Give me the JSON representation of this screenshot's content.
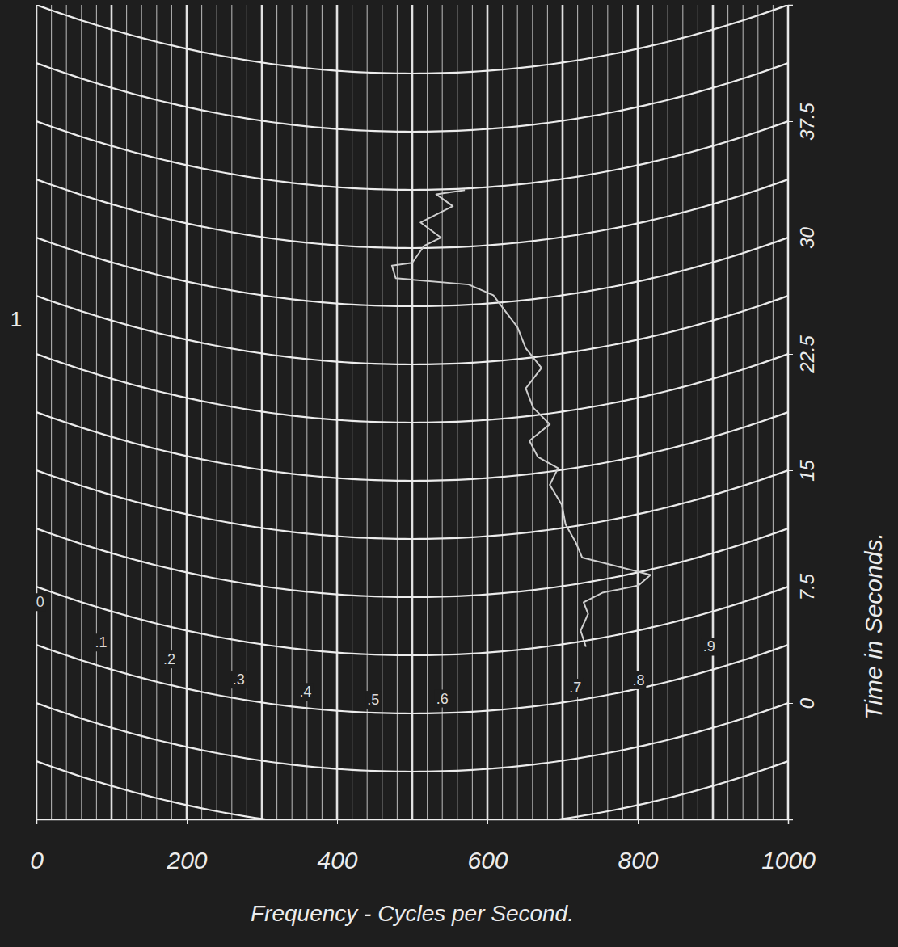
{
  "chart_data": {
    "type": "line",
    "x_label": "Frequency - Cycles per Second.",
    "y_label": "Time in Seconds.",
    "x": [
      731,
      724,
      734,
      728,
      753,
      801,
      817,
      769,
      726,
      717,
      704,
      699,
      683,
      694,
      667,
      656,
      683,
      661,
      651,
      672,
      651,
      640,
      624,
      608,
      575,
      478,
      473,
      500,
      516,
      538,
      511,
      554,
      532,
      570
    ],
    "series": [
      {
        "color": "#cfcfcf",
        "line_style": "solid",
        "values": [
          7.1,
          8.2,
          9.2,
          10.0,
          10.4,
          10.4,
          10.9,
          12.0,
          12.9,
          14.0,
          15.2,
          16.5,
          17.9,
          18.9,
          19.8,
          20.9,
          21.8,
          23.0,
          24.3,
          25.5,
          26.9,
          28.3,
          29.4,
          30.5,
          31.3,
          31.8,
          32.6,
          32.8,
          33.9,
          34.4,
          35.4,
          36.4,
          37.2,
          37.4
        ]
      }
    ],
    "xlim": [
      0,
      1000
    ],
    "xticks": [
      0,
      200,
      400,
      600,
      800,
      1000
    ],
    "ylim": [
      -7.5,
      45
    ],
    "yticks": [
      0,
      7.5,
      15,
      22.5,
      30,
      37.5
    ],
    "grid": true,
    "x_grid": [
      0,
      20,
      40,
      60,
      80,
      100,
      120,
      140,
      160,
      180,
      200,
      220,
      240,
      260,
      280,
      300,
      320,
      340,
      360,
      380,
      400,
      420,
      440,
      460,
      480,
      500,
      520,
      540,
      560,
      580,
      600,
      620,
      640,
      660,
      680,
      700,
      720,
      740,
      760,
      780,
      800,
      820,
      840,
      860,
      880,
      900,
      920,
      940,
      960,
      980,
      1000
    ],
    "y_grid": [
      -7.5,
      -3.75,
      0,
      3.75,
      7.5,
      11.25,
      15,
      18.75,
      22.5,
      26.25,
      30,
      33.75,
      37.5,
      41.25,
      45
    ],
    "annotations": [
      {
        "text": "0",
        "x": 5,
        "y": 6.6
      },
      {
        "text": ".1",
        "x": 86,
        "y": 5.3
      },
      {
        "text": ".2",
        "x": 177,
        "y": 5.4
      },
      {
        "text": ".3",
        "x": 269,
        "y": 5.0
      },
      {
        "text": ".4",
        "x": 358,
        "y": 4.8
      },
      {
        "text": ".5",
        "x": 448,
        "y": 4.6
      },
      {
        "text": ".6",
        "x": 540,
        "y": 4.7
      },
      {
        "text": ".7",
        "x": 717,
        "y": 4.6
      },
      {
        "text": ".8",
        "x": 801,
        "y": 4.3
      },
      {
        "text": ".9",
        "x": 895,
        "y": 5.3
      }
    ],
    "side_label": "1"
  }
}
